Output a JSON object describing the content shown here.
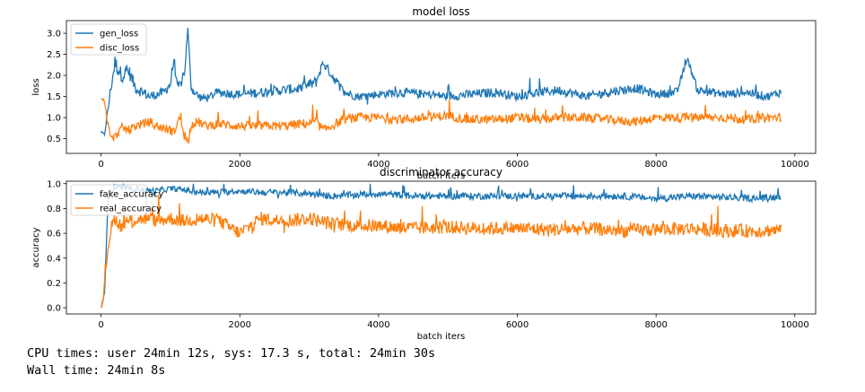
{
  "colors": {
    "blue": "#1f77b4",
    "orange": "#ff7f0e"
  },
  "chart_data": [
    {
      "type": "line",
      "title": "model loss",
      "xlabel": "batch iters",
      "ylabel": "loss",
      "xlim": [
        -500,
        10300
      ],
      "ylim": [
        0.15,
        3.3
      ],
      "xticks": [
        0,
        2000,
        4000,
        6000,
        8000,
        10000
      ],
      "yticks": [
        0.5,
        1.0,
        1.5,
        2.0,
        2.5,
        3.0
      ],
      "ytick_labels": [
        "0.5",
        "1.0",
        "1.5",
        "2.0",
        "2.5",
        "3.0"
      ],
      "legend": "upper left",
      "grid": false,
      "series": [
        {
          "name": "gen_loss",
          "color": "#1f77b4",
          "x": [
            0,
            50,
            100,
            150,
            200,
            300,
            400,
            500,
            600,
            700,
            800,
            900,
            1000,
            1050,
            1100,
            1150,
            1200,
            1250,
            1300,
            1400,
            1500,
            1700,
            2000,
            2300,
            2600,
            2900,
            3100,
            3200,
            3500,
            3700,
            4000,
            4300,
            4700,
            5000,
            5300,
            5700,
            6000,
            6300,
            6600,
            7000,
            7300,
            7700,
            8000,
            8300,
            8450,
            8600,
            9000,
            9300,
            9600,
            9800
          ],
          "y": [
            0.65,
            0.6,
            1.2,
            1.8,
            2.3,
            2.0,
            2.1,
            1.7,
            1.6,
            1.5,
            1.55,
            1.6,
            1.8,
            2.4,
            1.7,
            1.8,
            2.0,
            3.1,
            1.7,
            1.5,
            1.45,
            1.6,
            1.55,
            1.6,
            1.65,
            1.7,
            1.85,
            2.3,
            1.6,
            1.5,
            1.55,
            1.6,
            1.55,
            1.5,
            1.55,
            1.6,
            1.5,
            1.6,
            1.65,
            1.5,
            1.6,
            1.7,
            1.55,
            1.6,
            2.4,
            1.65,
            1.55,
            1.6,
            1.5,
            1.6
          ],
          "noise": [
            0.05,
            0.05,
            0.2,
            0.3,
            0.35,
            0.3,
            0.3,
            0.25,
            0.25,
            0.2,
            0.2,
            0.2,
            0.25,
            0.25,
            0.2,
            0.2,
            0.25,
            0.1,
            0.2,
            0.2,
            0.2,
            0.2,
            0.2,
            0.22,
            0.22,
            0.22,
            0.25,
            0.2,
            0.2,
            0.18,
            0.18,
            0.2,
            0.2,
            0.18,
            0.2,
            0.2,
            0.18,
            0.2,
            0.2,
            0.18,
            0.2,
            0.2,
            0.18,
            0.2,
            0.1,
            0.2,
            0.18,
            0.18,
            0.18,
            0.18
          ]
        },
        {
          "name": "disc_loss",
          "color": "#ff7f0e",
          "x": [
            0,
            50,
            100,
            150,
            200,
            300,
            400,
            500,
            600,
            700,
            800,
            900,
            1000,
            1050,
            1100,
            1150,
            1200,
            1250,
            1300,
            1400,
            1500,
            1700,
            2000,
            2300,
            2600,
            2900,
            3100,
            3200,
            3500,
            3700,
            4000,
            4300,
            4700,
            5000,
            5300,
            5700,
            6000,
            6300,
            6600,
            7000,
            7300,
            7700,
            8000,
            8300,
            8600,
            9000,
            9300,
            9600,
            9800
          ],
          "y": [
            1.45,
            1.4,
            0.8,
            0.5,
            0.55,
            0.75,
            0.7,
            0.8,
            0.85,
            0.9,
            0.8,
            0.75,
            0.7,
            0.65,
            0.9,
            1.0,
            0.6,
            0.4,
            0.85,
            0.9,
            0.8,
            0.85,
            0.8,
            0.8,
            0.8,
            0.85,
            0.9,
            0.7,
            0.95,
            1.0,
            1.0,
            0.95,
            1.0,
            1.05,
            0.95,
            0.95,
            1.0,
            0.95,
            1.0,
            1.0,
            0.95,
            0.9,
            1.0,
            1.0,
            1.0,
            1.0,
            0.95,
            1.0,
            1.0
          ],
          "noise": [
            0.05,
            0.05,
            0.2,
            0.15,
            0.15,
            0.2,
            0.2,
            0.2,
            0.2,
            0.2,
            0.2,
            0.2,
            0.2,
            0.2,
            0.2,
            0.25,
            0.3,
            0.2,
            0.2,
            0.2,
            0.2,
            0.2,
            0.2,
            0.2,
            0.2,
            0.2,
            0.2,
            0.2,
            0.2,
            0.2,
            0.2,
            0.2,
            0.2,
            0.2,
            0.2,
            0.2,
            0.2,
            0.2,
            0.2,
            0.2,
            0.2,
            0.2,
            0.2,
            0.2,
            0.2,
            0.2,
            0.2,
            0.2,
            0.2
          ]
        }
      ]
    },
    {
      "type": "line",
      "title": "discriminator accuracy",
      "xlabel": "batch iters",
      "ylabel": "accuracy",
      "xlim": [
        -500,
        10300
      ],
      "ylim": [
        -0.05,
        1.02
      ],
      "xticks": [
        0,
        2000,
        4000,
        6000,
        8000,
        10000
      ],
      "yticks": [
        0.0,
        0.2,
        0.4,
        0.6,
        0.8,
        1.0
      ],
      "ytick_labels": [
        "0.0",
        "0.2",
        "0.4",
        "0.6",
        "0.8",
        "1.0"
      ],
      "legend": "upper left",
      "grid": false,
      "series": [
        {
          "name": "fake_accuracy",
          "color": "#1f77b4",
          "x": [
            0,
            50,
            100,
            200,
            400,
            600,
            800,
            1000,
            1200,
            1400,
            1700,
            2000,
            2300,
            2600,
            3000,
            3300,
            3700,
            4000,
            4500,
            5000,
            5500,
            6000,
            6500,
            7000,
            7500,
            8000,
            8500,
            9000,
            9500,
            9800
          ],
          "y": [
            0.0,
            0.1,
            0.9,
            0.97,
            0.96,
            0.95,
            0.94,
            0.96,
            0.95,
            0.93,
            0.93,
            0.94,
            0.93,
            0.93,
            0.92,
            0.9,
            0.91,
            0.92,
            0.9,
            0.9,
            0.9,
            0.9,
            0.9,
            0.9,
            0.9,
            0.88,
            0.9,
            0.89,
            0.88,
            0.9
          ],
          "noise": [
            0.02,
            0.05,
            0.05,
            0.04,
            0.04,
            0.04,
            0.05,
            0.04,
            0.04,
            0.05,
            0.05,
            0.04,
            0.05,
            0.05,
            0.05,
            0.05,
            0.05,
            0.05,
            0.05,
            0.05,
            0.05,
            0.05,
            0.05,
            0.05,
            0.05,
            0.05,
            0.05,
            0.05,
            0.05,
            0.05
          ]
        },
        {
          "name": "real_accuracy",
          "color": "#ff7f0e",
          "x": [
            0,
            30,
            60,
            100,
            150,
            200,
            300,
            400,
            600,
            800,
            1000,
            1200,
            1400,
            1700,
            2000,
            2300,
            2600,
            3000,
            3300,
            3700,
            4000,
            4500,
            5000,
            5500,
            6000,
            6500,
            7000,
            7500,
            8000,
            8500,
            9000,
            9500,
            9800
          ],
          "y": [
            0.0,
            0.05,
            0.25,
            0.5,
            0.65,
            0.72,
            0.65,
            0.7,
            0.72,
            0.7,
            0.72,
            0.7,
            0.72,
            0.7,
            0.6,
            0.72,
            0.7,
            0.72,
            0.68,
            0.66,
            0.66,
            0.64,
            0.65,
            0.64,
            0.64,
            0.63,
            0.64,
            0.62,
            0.63,
            0.64,
            0.62,
            0.62,
            0.63
          ],
          "noise": [
            0.01,
            0.04,
            0.08,
            0.1,
            0.1,
            0.1,
            0.1,
            0.1,
            0.1,
            0.1,
            0.1,
            0.1,
            0.1,
            0.1,
            0.1,
            0.1,
            0.1,
            0.1,
            0.1,
            0.1,
            0.1,
            0.1,
            0.1,
            0.1,
            0.1,
            0.1,
            0.1,
            0.1,
            0.1,
            0.1,
            0.1,
            0.1,
            0.1
          ]
        }
      ]
    }
  ],
  "cpu_times": "CPU times: user 24min 12s, sys: 17.3 s, total: 24min 30s",
  "wall_time": "Wall time: 24min 8s"
}
